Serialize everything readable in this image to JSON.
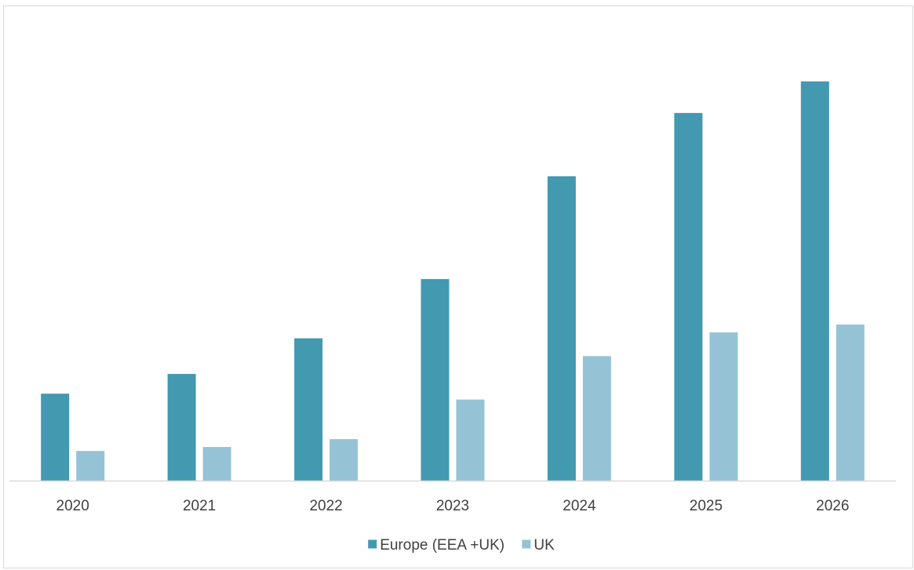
{
  "chart_data": {
    "type": "bar",
    "title": "",
    "xlabel": "",
    "ylabel": "",
    "categories": [
      "2020",
      "2021",
      "2022",
      "2023",
      "2024",
      "2025",
      "2026"
    ],
    "series": [
      {
        "name": "Europe (EEA +UK)",
        "color": "#4399b0",
        "values": [
          22,
          27,
          36,
          51,
          77,
          93,
          101
        ]
      },
      {
        "name": "UK",
        "color": "#95c3d5",
        "values": [
          7.5,
          8.5,
          10.5,
          20.5,
          31.5,
          37.5,
          39.5
        ]
      }
    ],
    "ylim": [
      0,
      120
    ],
    "y_axis_visible": false,
    "grid": false,
    "legend": "bottom"
  }
}
